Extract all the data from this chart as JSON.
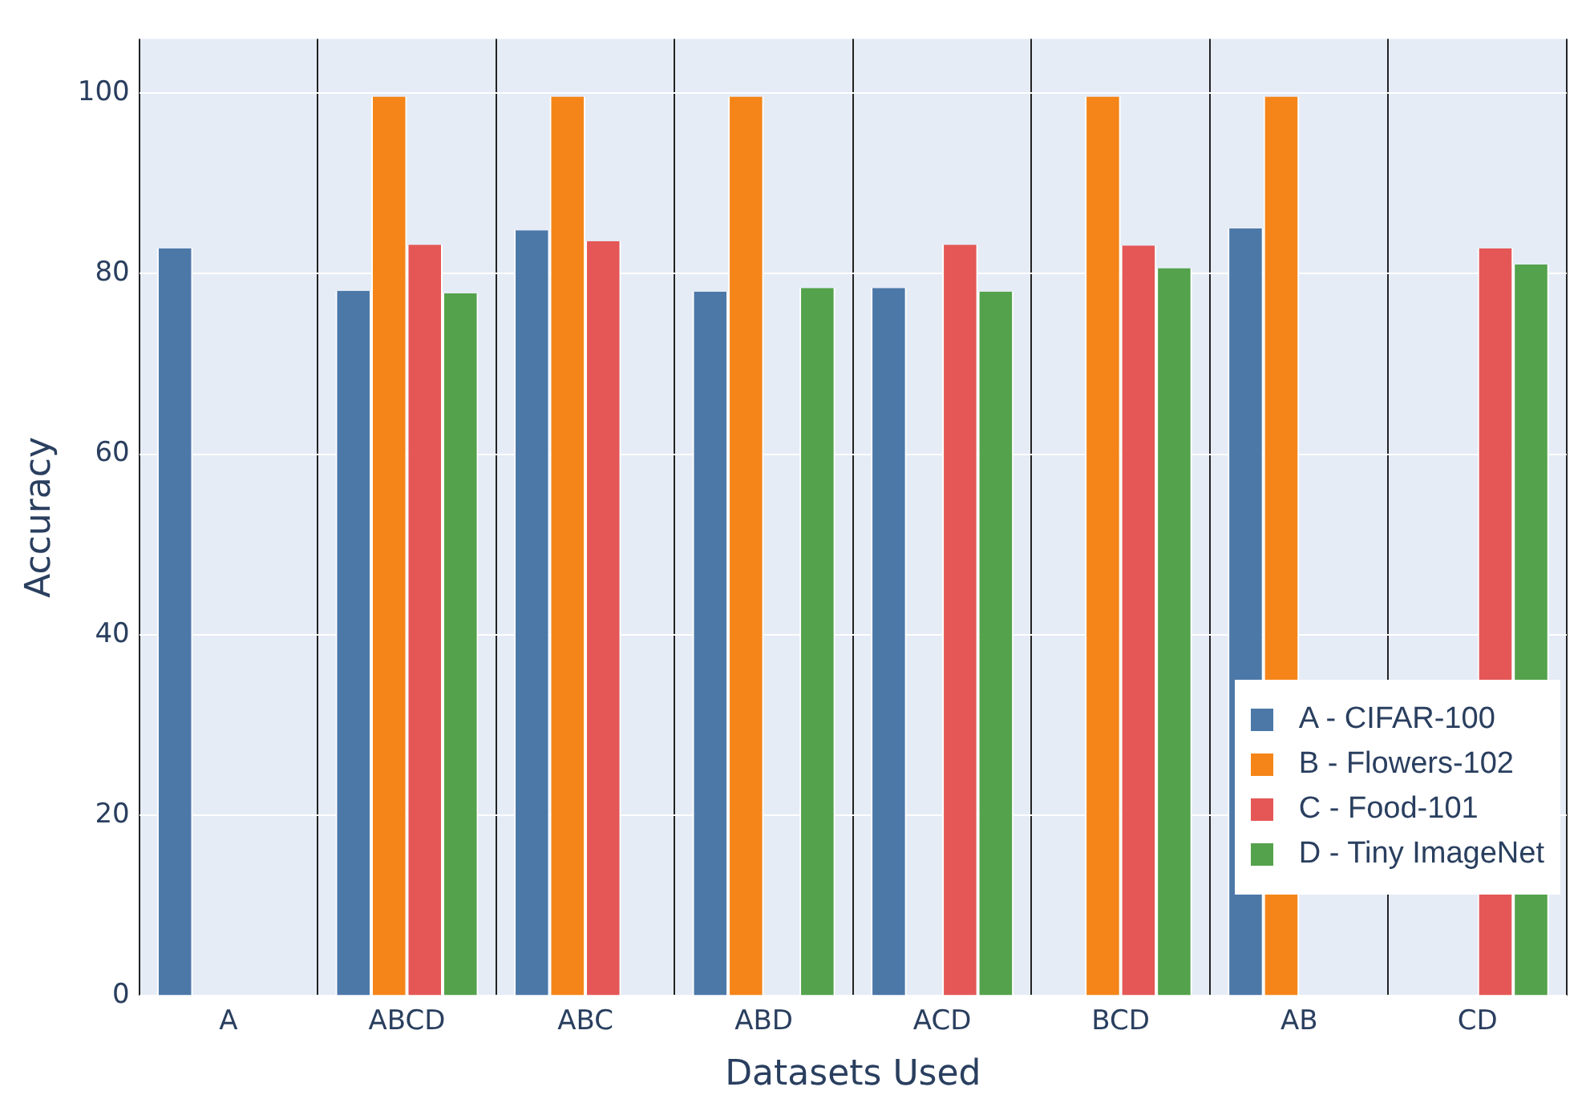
{
  "chart_data": {
    "type": "bar",
    "xlabel": "Datasets Used",
    "ylabel": "Accuracy",
    "categories": [
      "A",
      "ABCD",
      "ABC",
      "ABD",
      "ACD",
      "BCD",
      "AB",
      "CD"
    ],
    "series": [
      {
        "name": "A - CIFAR-100",
        "color": "#4c78a8",
        "values": [
          82.8,
          78.1,
          84.8,
          78.0,
          78.4,
          null,
          85.0,
          null
        ]
      },
      {
        "name": "B - Flowers-102",
        "color": "#f58518",
        "values": [
          null,
          99.6,
          99.6,
          99.6,
          null,
          99.6,
          99.6,
          null
        ]
      },
      {
        "name": "C - Food-101",
        "color": "#e45756",
        "values": [
          null,
          83.2,
          83.6,
          null,
          83.2,
          83.1,
          null,
          82.8
        ]
      },
      {
        "name": "D - Tiny ImageNet",
        "color": "#54a24b",
        "values": [
          null,
          77.8,
          null,
          78.4,
          78.0,
          80.6,
          null,
          81.0
        ]
      }
    ],
    "ylim": [
      0,
      106
    ],
    "yticks": [
      0,
      20,
      40,
      60,
      80,
      100
    ],
    "grid": true,
    "legend": "bottom right"
  }
}
